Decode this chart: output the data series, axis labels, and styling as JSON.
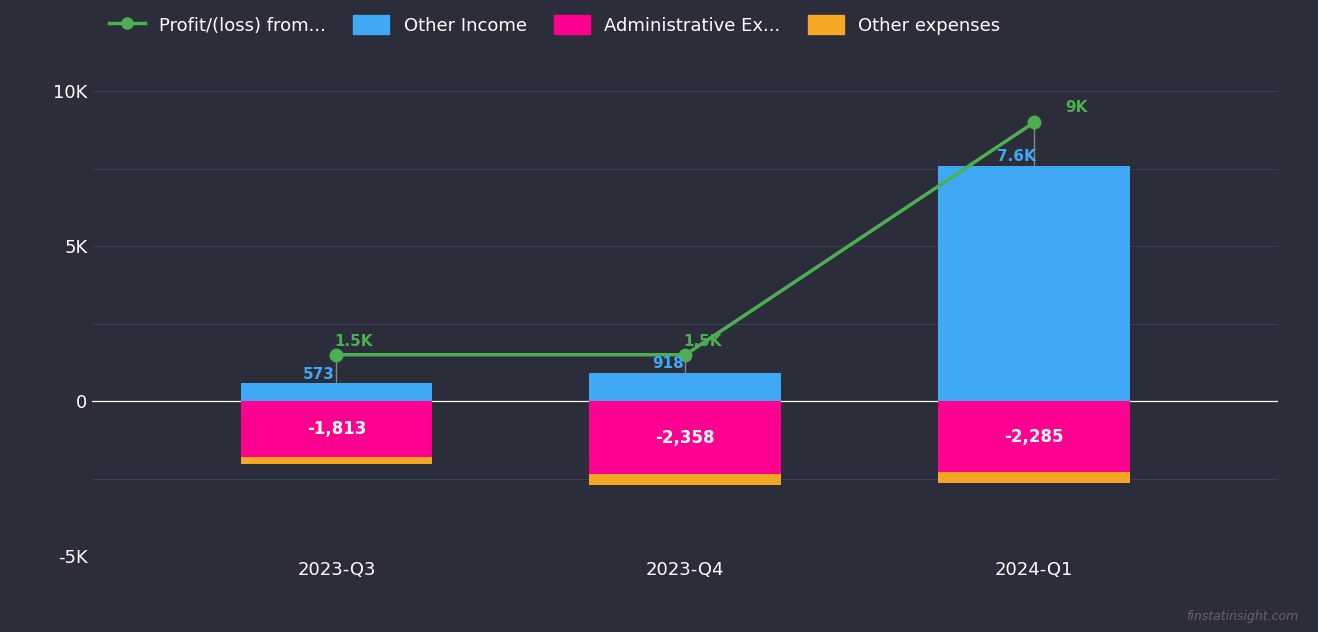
{
  "categories": [
    "2023-Q3",
    "2023-Q4",
    "2024-Q1"
  ],
  "other_income": [
    573,
    918,
    7600
  ],
  "admin_expenses": [
    -1813,
    -2358,
    -2285
  ],
  "other_expenses": [
    -200,
    -350,
    -350
  ],
  "profit_loss": [
    1500,
    1500,
    9000
  ],
  "profit_labels": [
    "1.5K",
    "1.5K",
    "9K"
  ],
  "income_labels": [
    "573",
    "918",
    "7.6K"
  ],
  "admin_labels": [
    "-1,813",
    "-2,358",
    "-2,285"
  ],
  "bar_width": 0.55,
  "colors": {
    "background": "#2b2d3b",
    "grid": "#3d3f52",
    "blue": "#3fa9f5",
    "magenta": "#ff0090",
    "orange": "#f5a623",
    "green": "#4caf50",
    "text": "#ffffff",
    "stem": "#888888"
  },
  "ylim": [
    -5000,
    10500
  ],
  "yticks": [
    -5000,
    -2500,
    0,
    2500,
    5000,
    7500,
    10000
  ],
  "ytick_labels": [
    "-5K",
    "",
    "0",
    "",
    "5K",
    "",
    "10K"
  ],
  "legend_items": [
    {
      "label": "Profit/(loss) from...",
      "color": "#4caf50",
      "type": "line"
    },
    {
      "label": "Other Income",
      "color": "#3fa9f5",
      "type": "bar"
    },
    {
      "label": "Administrative Ex...",
      "color": "#ff0090",
      "type": "bar"
    },
    {
      "label": "Other expenses",
      "color": "#f5a623",
      "type": "bar"
    }
  ],
  "watermark": "finstatinsight.com"
}
